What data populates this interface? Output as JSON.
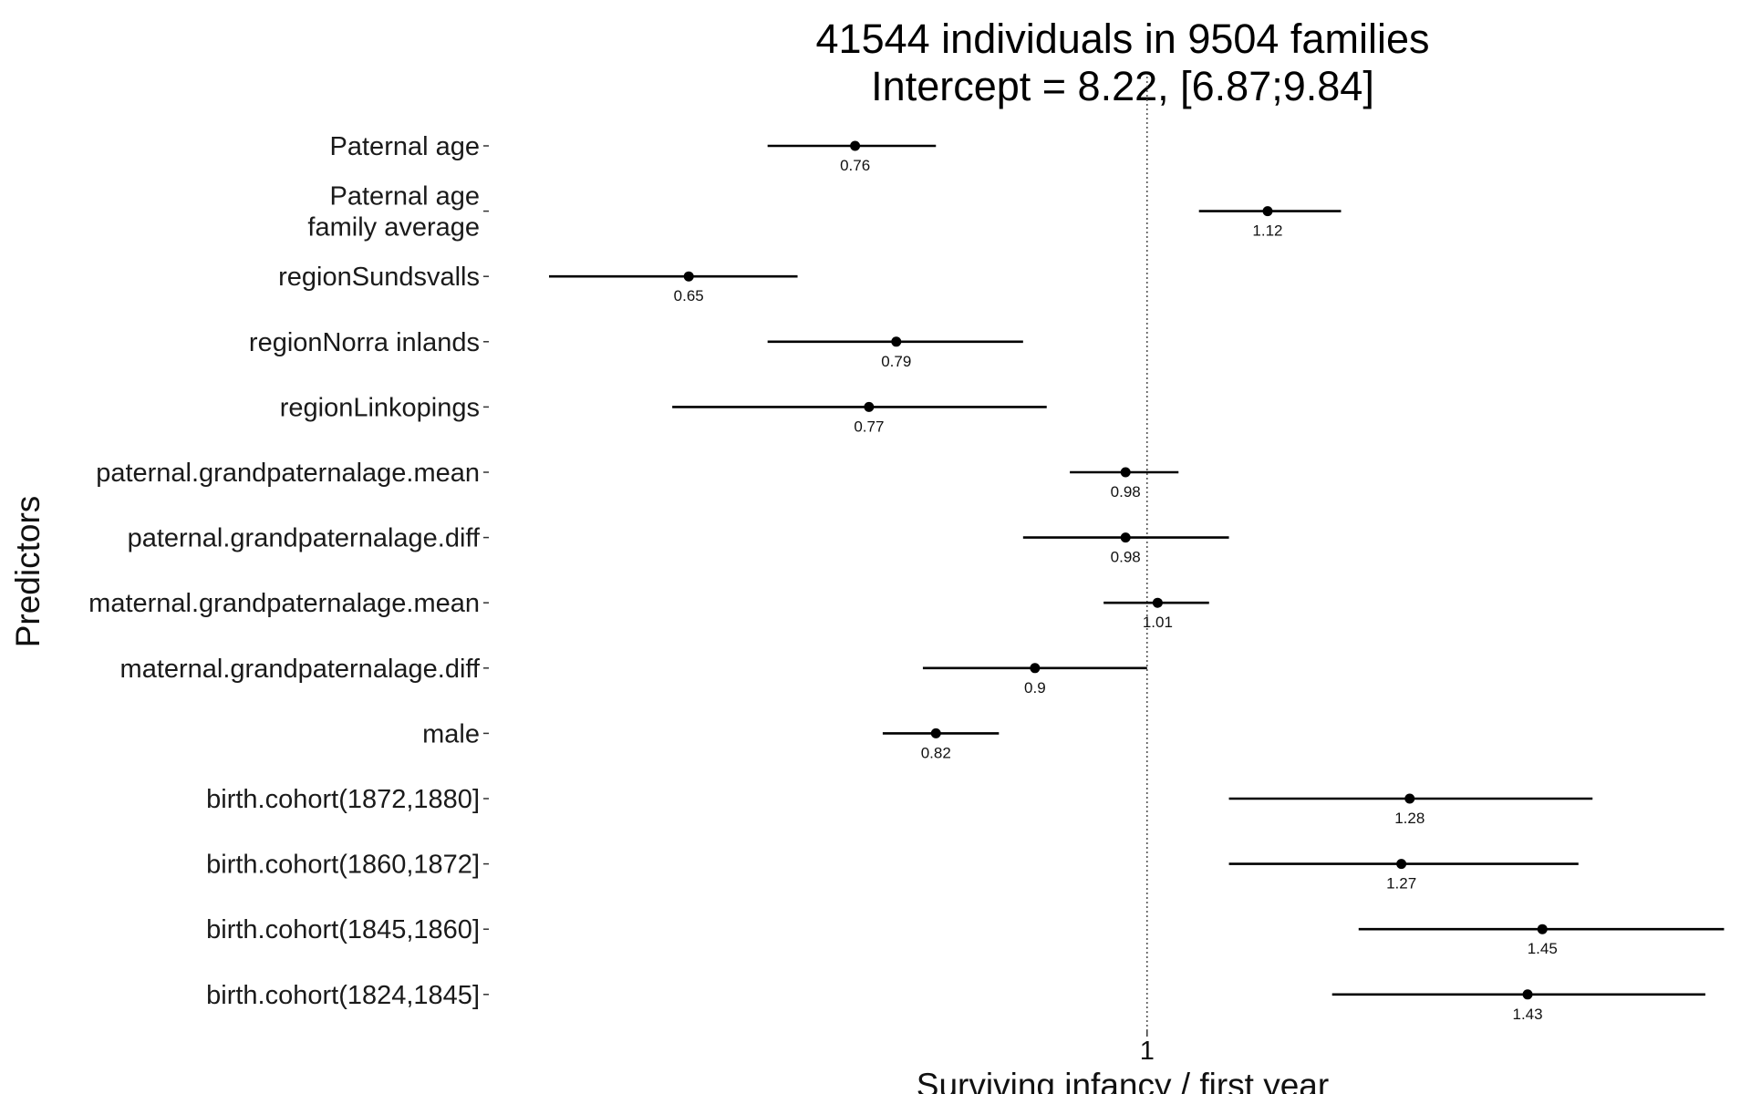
{
  "chart_data": {
    "type": "forest",
    "title": [
      "41544 individuals in 9504 families",
      "Intercept = 8.22, [6.87;9.84]"
    ],
    "xlabel": "Surviving infancy / first year",
    "ylabel": "Predictors",
    "x_scale": "log",
    "xlim": [
      0.57,
      1.68
    ],
    "x_ticks": [
      1
    ],
    "x_tick_labels": [
      "1"
    ],
    "reference_line": 1,
    "grid": false,
    "rows": [
      {
        "label": [
          "Paternal age"
        ],
        "estimate": 0.76,
        "lower": 0.7,
        "upper": 0.82,
        "value_label": "0.76"
      },
      {
        "label": [
          "Paternal age",
          "family average"
        ],
        "estimate": 1.12,
        "lower": 1.05,
        "upper": 1.2,
        "value_label": "1.12"
      },
      {
        "label": [
          "regionSundsvalls"
        ],
        "estimate": 0.65,
        "lower": 0.57,
        "upper": 0.72,
        "value_label": "0.65"
      },
      {
        "label": [
          "regionNorra inlands"
        ],
        "estimate": 0.79,
        "lower": 0.7,
        "upper": 0.89,
        "value_label": "0.79"
      },
      {
        "label": [
          "regionLinkopings"
        ],
        "estimate": 0.77,
        "lower": 0.64,
        "upper": 0.91,
        "value_label": "0.77"
      },
      {
        "label": [
          "paternal.grandpaternalage.mean"
        ],
        "estimate": 0.98,
        "lower": 0.93,
        "upper": 1.03,
        "value_label": "0.98"
      },
      {
        "label": [
          "paternal.grandpaternalage.diff"
        ],
        "estimate": 0.98,
        "lower": 0.89,
        "upper": 1.08,
        "value_label": "0.98"
      },
      {
        "label": [
          "maternal.grandpaternalage.mean"
        ],
        "estimate": 1.01,
        "lower": 0.96,
        "upper": 1.06,
        "value_label": "1.01"
      },
      {
        "label": [
          "maternal.grandpaternalage.diff"
        ],
        "estimate": 0.9,
        "lower": 0.81,
        "upper": 1.0,
        "value_label": "0.9"
      },
      {
        "label": [
          "male"
        ],
        "estimate": 0.82,
        "lower": 0.78,
        "upper": 0.87,
        "value_label": "0.82"
      },
      {
        "label": [
          "birth.cohort(1872,1880]"
        ],
        "estimate": 1.28,
        "lower": 1.08,
        "upper": 1.52,
        "value_label": "1.28"
      },
      {
        "label": [
          "birth.cohort(1860,1872]"
        ],
        "estimate": 1.27,
        "lower": 1.08,
        "upper": 1.5,
        "value_label": "1.27"
      },
      {
        "label": [
          "birth.cohort(1845,1860]"
        ],
        "estimate": 1.45,
        "lower": 1.22,
        "upper": 1.72,
        "value_label": "1.45"
      },
      {
        "label": [
          "birth.cohort(1824,1845]"
        ],
        "estimate": 1.43,
        "lower": 1.19,
        "upper": 1.69,
        "value_label": "1.43"
      }
    ]
  }
}
